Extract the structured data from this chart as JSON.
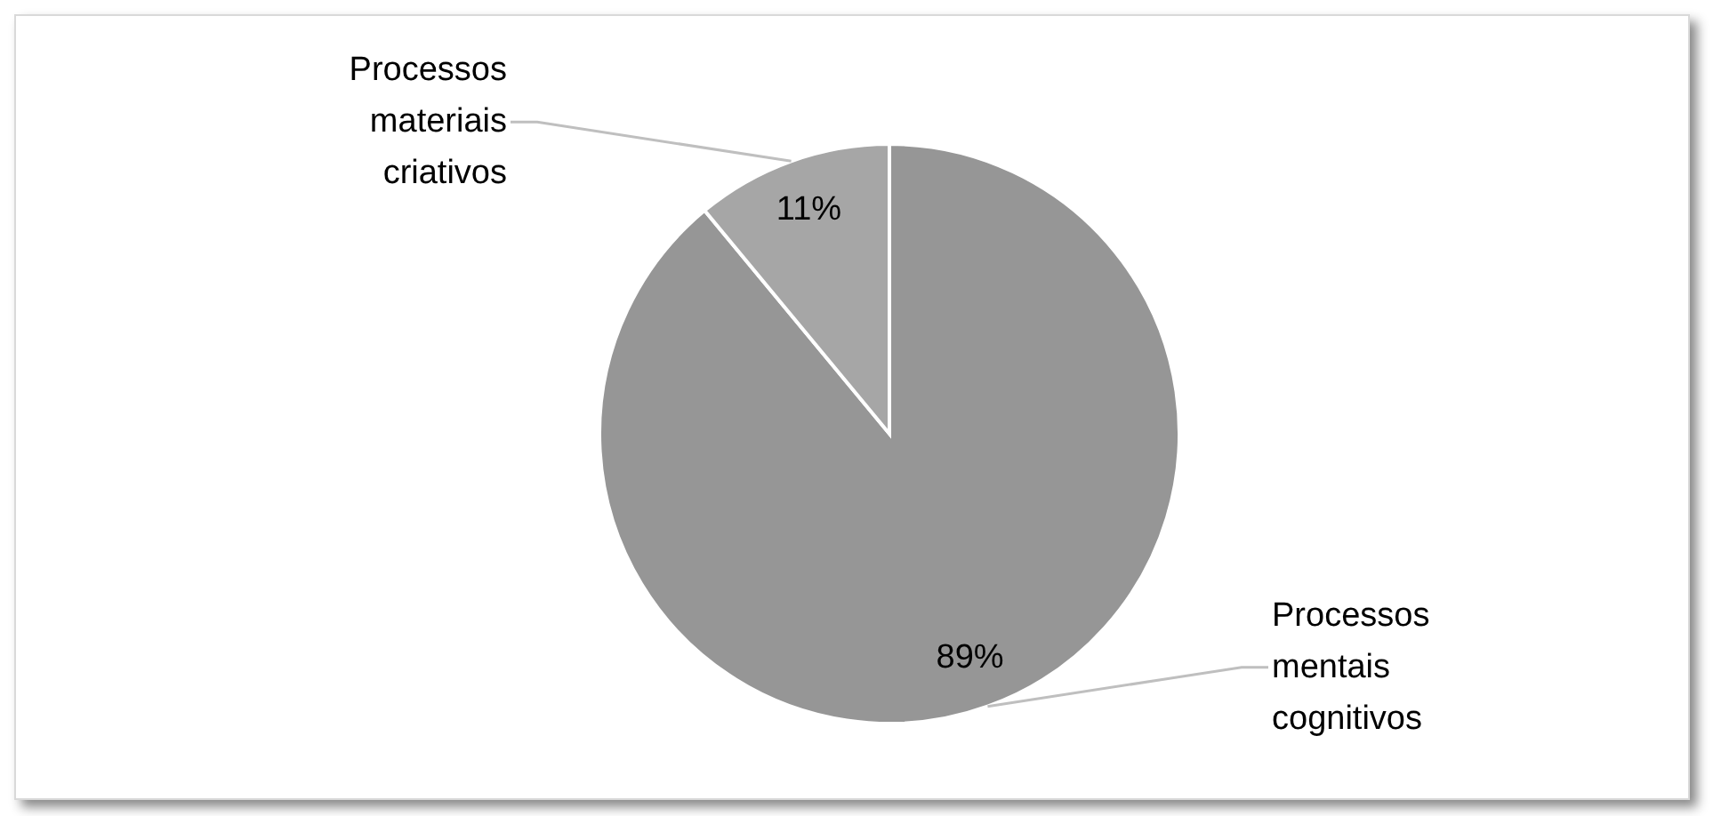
{
  "chart_data": {
    "type": "pie",
    "categories": [
      "Processos mentais cognitivos",
      "Processos materiais criativos"
    ],
    "values": [
      89,
      11
    ],
    "colors": [
      "#969696",
      "#a6a6a6"
    ],
    "value_labels": [
      "89%",
      "11%"
    ]
  }
}
